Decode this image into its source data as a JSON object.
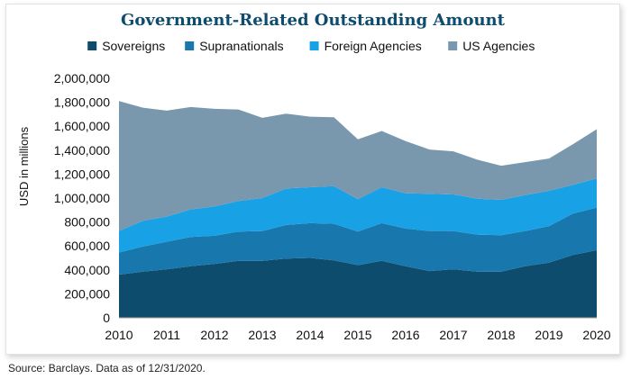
{
  "chart_data": {
    "type": "area",
    "stacked": true,
    "title": "Government-Related Outstanding Amount",
    "xlabel": "",
    "ylabel": "USD in millions",
    "ylim": [
      0,
      2000000
    ],
    "yticks": [
      0,
      200000,
      400000,
      600000,
      800000,
      1000000,
      1200000,
      1400000,
      1600000,
      1800000,
      2000000
    ],
    "ytick_labels": [
      "0",
      "200,000",
      "400,000",
      "600,000",
      "800,000",
      "1,000,000",
      "1,200,000",
      "1,400,000",
      "1,600,000",
      "1,800,000",
      "2,000,000"
    ],
    "xlim": [
      2010,
      2020
    ],
    "xticks": [
      2010,
      2011,
      2012,
      2013,
      2014,
      2015,
      2016,
      2017,
      2018,
      2019,
      2020
    ],
    "xtick_labels": [
      "2010",
      "2011",
      "2012",
      "2013",
      "2014",
      "2015",
      "2016",
      "2017",
      "2018",
      "2019",
      "2020"
    ],
    "legend_position": "top",
    "x": [
      2010,
      2010.5,
      2011,
      2011.5,
      2012,
      2012.5,
      2013,
      2013.5,
      2014,
      2014.5,
      2015,
      2015.5,
      2016,
      2016.5,
      2017,
      2017.5,
      2018,
      2018.5,
      2019,
      2019.5,
      2020
    ],
    "series": [
      {
        "name": "Sovereigns",
        "color": "#0e4c6e",
        "values": [
          360000,
          385000,
          405000,
          430000,
          450000,
          475000,
          475000,
          495000,
          500000,
          480000,
          440000,
          475000,
          430000,
          390000,
          405000,
          385000,
          385000,
          430000,
          460000,
          525000,
          565000
        ]
      },
      {
        "name": "Supranationals",
        "color": "#1878ad",
        "values": [
          185000,
          210000,
          230000,
          245000,
          235000,
          245000,
          250000,
          280000,
          290000,
          305000,
          280000,
          315000,
          315000,
          335000,
          320000,
          310000,
          305000,
          295000,
          305000,
          345000,
          355000
        ]
      },
      {
        "name": "Foreign Agencies",
        "color": "#19a1e6",
        "values": [
          180000,
          215000,
          210000,
          230000,
          245000,
          255000,
          275000,
          305000,
          300000,
          315000,
          270000,
          300000,
          295000,
          310000,
          305000,
          300000,
          295000,
          300000,
          295000,
          240000,
          245000
        ]
      },
      {
        "name": "US Agencies",
        "color": "#7a98ad",
        "values": [
          1085000,
          945000,
          885000,
          855000,
          815000,
          765000,
          670000,
          625000,
          590000,
          575000,
          500000,
          470000,
          435000,
          370000,
          360000,
          325000,
          285000,
          275000,
          270000,
          340000,
          410000
        ]
      }
    ]
  },
  "source_note": "Source: Barclays. Data as of 12/31/2020.",
  "colors": {
    "title": "#0e4c6e",
    "axis": "#9a9a9a"
  }
}
